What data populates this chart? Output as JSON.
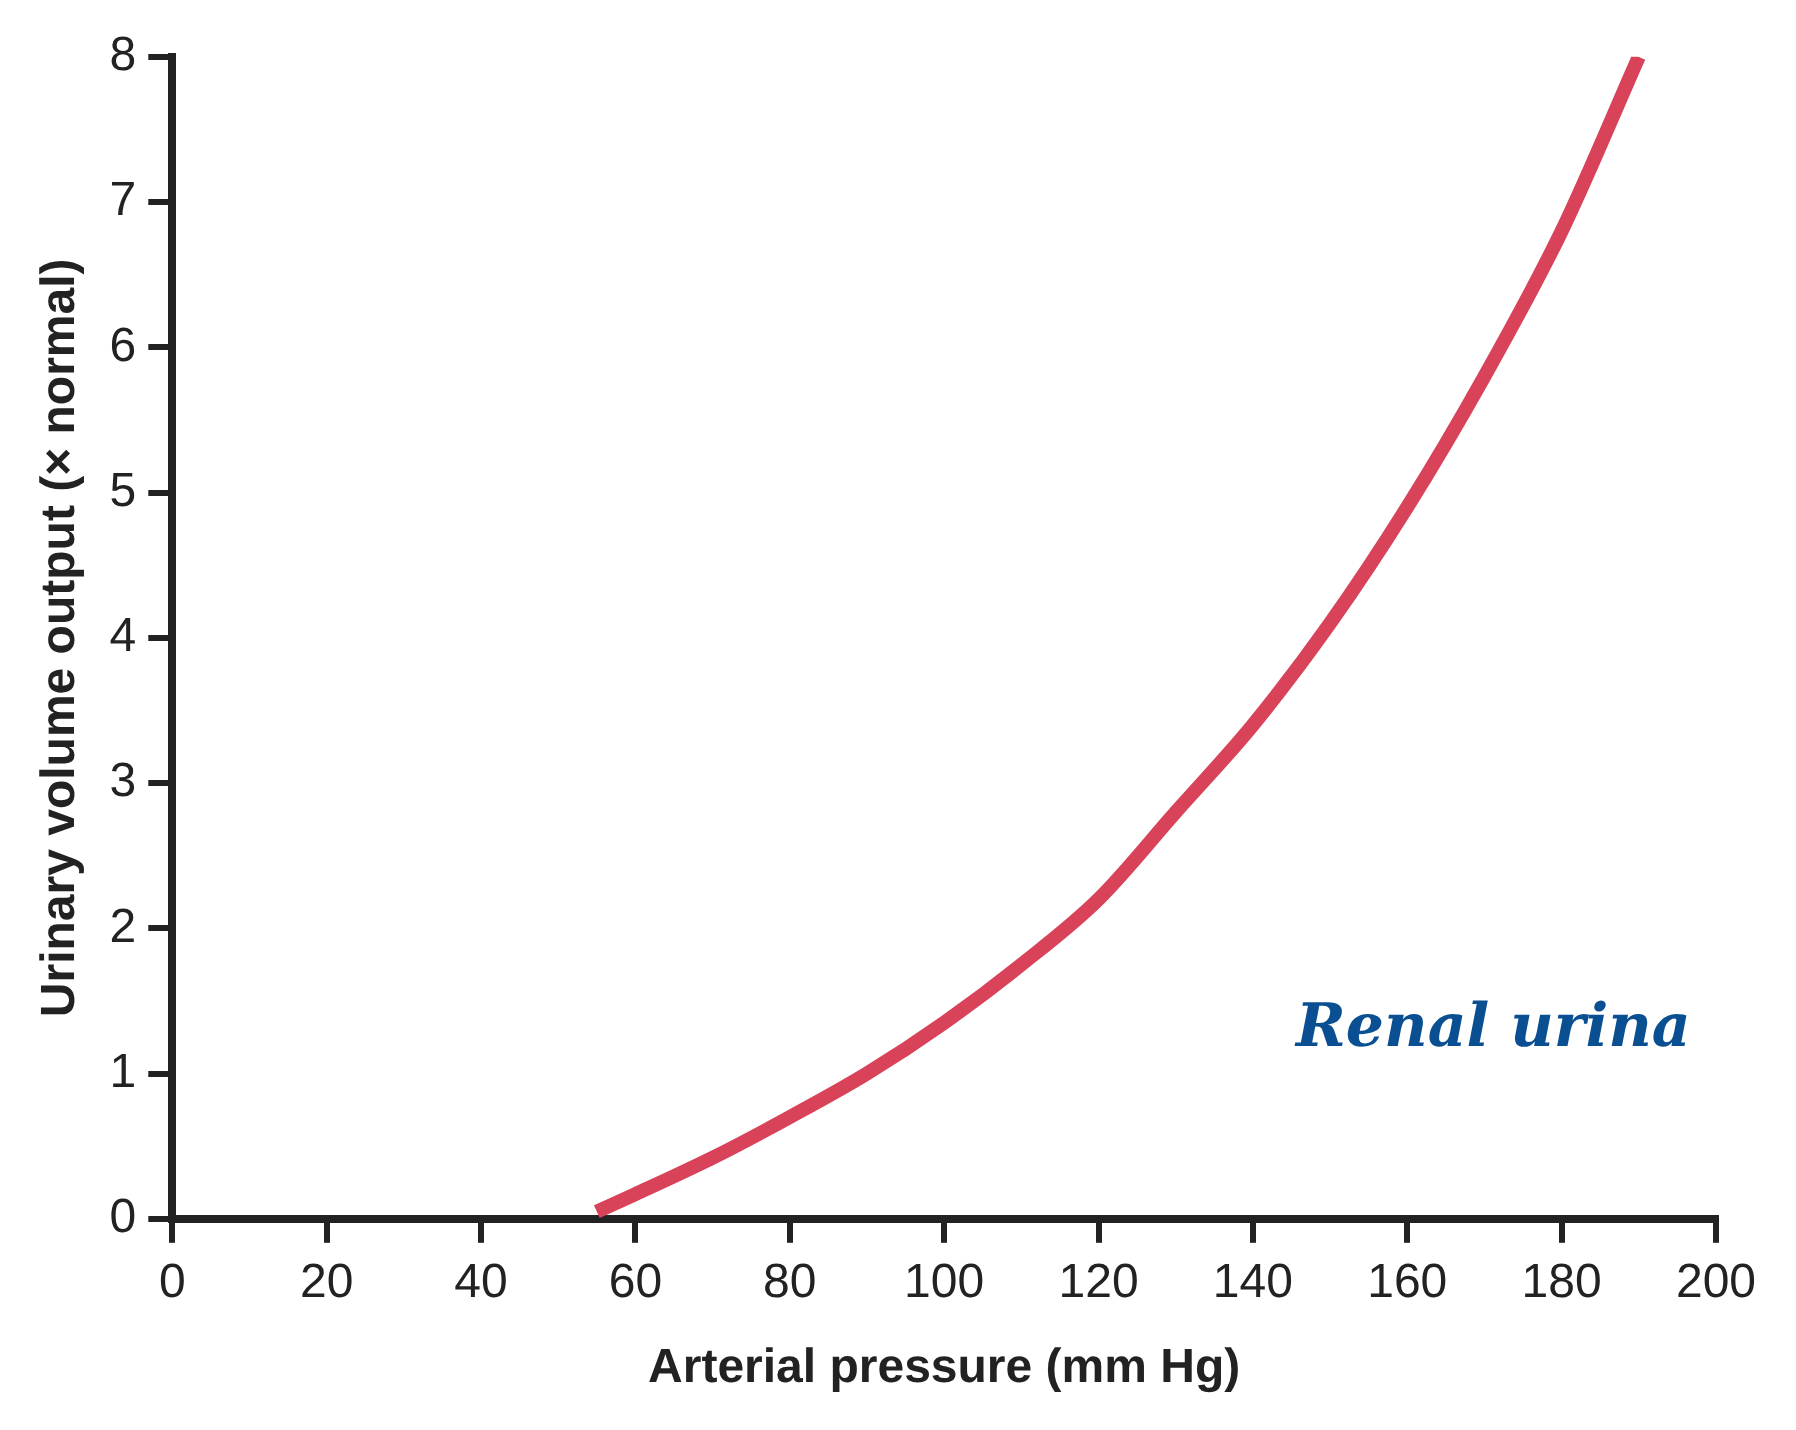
{
  "chart_data": {
    "type": "line",
    "xlabel": "Arterial pressure (mm Hg)",
    "ylabel": "Urinary volume output (× normal)",
    "annotations": [
      "Renal urina"
    ],
    "series": [
      {
        "color": "#d9435a",
        "x": [
          55,
          60,
          70,
          80,
          90,
          100,
          110,
          120,
          130,
          140,
          150,
          160,
          170,
          180,
          190
        ],
        "values": [
          0.05,
          0.17,
          0.42,
          0.7,
          1.0,
          1.35,
          1.75,
          2.2,
          2.8,
          3.4,
          4.1,
          4.9,
          5.8,
          6.8,
          8.0
        ]
      }
    ],
    "xlim": [
      0,
      200
    ],
    "xticks": [
      0,
      20,
      40,
      60,
      80,
      100,
      120,
      140,
      160,
      180,
      200
    ],
    "ylim": [
      0,
      8
    ],
    "yticks": [
      0,
      1,
      2,
      3,
      4,
      5,
      6,
      7,
      8
    ],
    "grid": false,
    "legend": false,
    "marker": "none",
    "line_style": "solid"
  }
}
